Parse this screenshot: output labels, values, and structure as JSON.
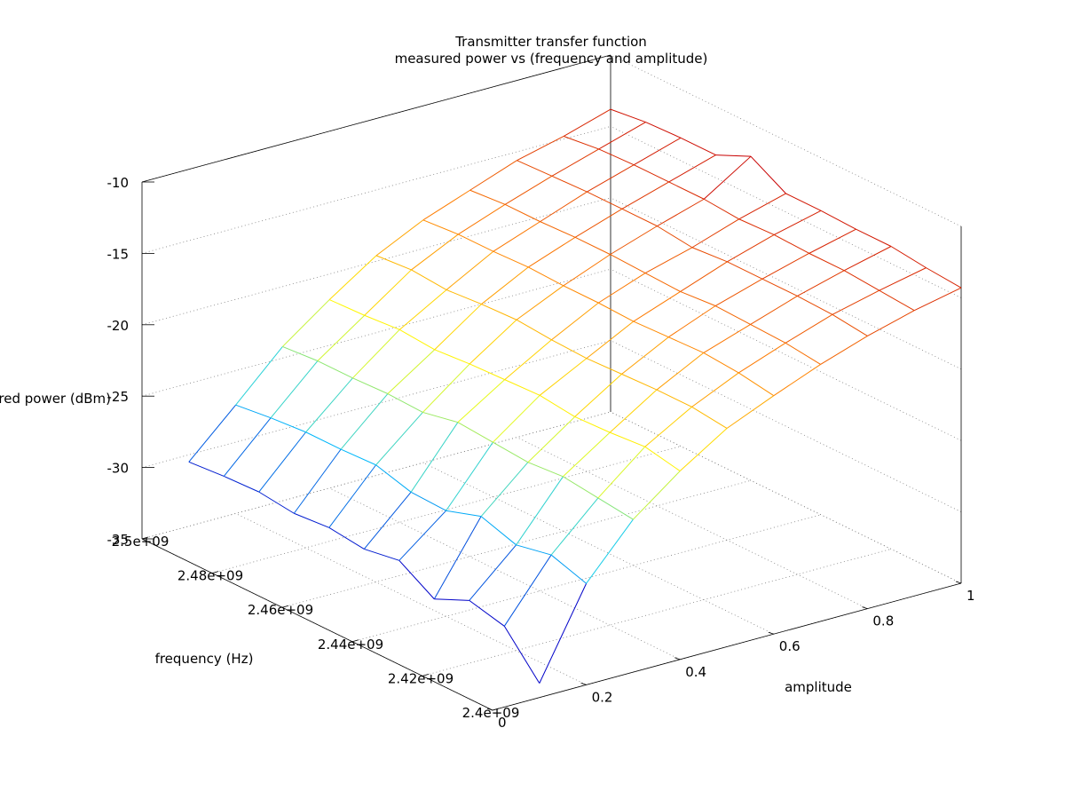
{
  "chart_data": {
    "type": "surface",
    "title": "Transmitter transfer function",
    "subtitle": "measured power vs (frequency and amplitude)",
    "xlabel": "frequency (Hz)",
    "ylabel": "amplitude",
    "zlabel": "measured power (dBm)",
    "x_ticks": [
      "2.4e+09",
      "2.42e+09",
      "2.44e+09",
      "2.46e+09",
      "2.48e+09",
      "2.5e+09"
    ],
    "y_ticks": [
      "0",
      "0.2",
      "0.4",
      "0.6",
      "0.8",
      "1"
    ],
    "z_ticks": [
      "-35",
      "-30",
      "-25",
      "-20",
      "-15",
      "-10"
    ],
    "xlim": [
      2400000000.0,
      2500000000.0
    ],
    "ylim": [
      0,
      1
    ],
    "zlim": [
      -35,
      -10
    ],
    "grid": true,
    "colormap": [
      "#0000c8",
      "#00c8ff",
      "#ffff00",
      "#ff8000",
      "#c80000"
    ],
    "frequency": [
      2400000000.0,
      2410000000.0,
      2420000000.0,
      2430000000.0,
      2440000000.0,
      2450000000.0,
      2460000000.0,
      2470000000.0,
      2480000000.0,
      2490000000.0,
      2500000000.0
    ],
    "amplitude": [
      0.1,
      0.2,
      0.3,
      0.4,
      0.5,
      0.6,
      0.7,
      0.8,
      0.9,
      1.0
    ],
    "power_dbm": [
      [
        -34.0,
        -27.9,
        -24.3,
        -21.8,
        -19.7,
        -18.3,
        -17.0,
        -15.9,
        -15.0,
        -14.3
      ],
      [
        -31.2,
        -27.1,
        -24.0,
        -21.3,
        -19.4,
        -17.9,
        -16.7,
        -15.6,
        -14.8,
        -14.1
      ],
      [
        -30.6,
        -27.6,
        -23.7,
        -21.5,
        -19.4,
        -17.7,
        -16.6,
        -15.5,
        -14.6,
        -13.8
      ],
      [
        -31.7,
        -26.8,
        -23.9,
        -21.6,
        -19.5,
        -17.8,
        -16.5,
        -15.5,
        -14.6,
        -13.8
      ],
      [
        -30.2,
        -27.6,
        -23.7,
        -21.3,
        -19.6,
        -17.9,
        -16.7,
        -15.5,
        -14.5,
        -13.7
      ],
      [
        -30.6,
        -27.5,
        -23.5,
        -21.4,
        -19.5,
        -17.8,
        -16.6,
        -15.7,
        -14.6,
        -13.7
      ],
      [
        -30.3,
        -26.8,
        -24.0,
        -21.5,
        -19.3,
        -17.8,
        -16.5,
        -15.4,
        -14.4,
        -12.3
      ],
      [
        -30.5,
        -26.9,
        -23.9,
        -21.7,
        -19.4,
        -17.7,
        -16.5,
        -15.4,
        -14.4,
        -13.4
      ],
      [
        -30.2,
        -26.9,
        -24.0,
        -21.5,
        -19.6,
        -17.8,
        -16.6,
        -15.4,
        -14.4,
        -13.4
      ],
      [
        -30.3,
        -27.1,
        -24.0,
        -21.7,
        -19.4,
        -17.8,
        -16.6,
        -15.5,
        -14.5,
        -13.5
      ],
      [
        -30.5,
        -27.4,
        -24.2,
        -21.8,
        -19.6,
        -18.0,
        -16.8,
        -15.6,
        -14.8,
        -13.8
      ]
    ]
  }
}
